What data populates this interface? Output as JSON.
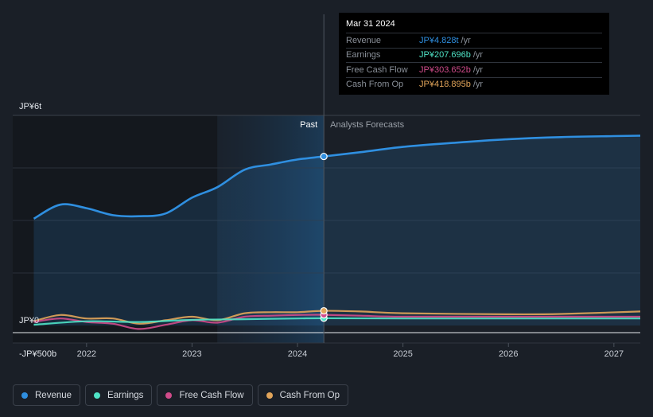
{
  "chart_data": {
    "type": "area",
    "y_axis": {
      "unit": "JP¥ trillions",
      "range": [
        -0.5,
        6.0
      ],
      "labels": [
        {
          "value": 6.0,
          "text": "JP¥6t"
        },
        {
          "value": 0.0,
          "text": "JP¥0"
        },
        {
          "value": -0.5,
          "text": "-JP¥500b"
        }
      ]
    },
    "x_axis": {
      "range": [
        2021.3,
        2027.25
      ],
      "ticks": [
        {
          "value": 2022.0,
          "text": "2022"
        },
        {
          "value": 2023.0,
          "text": "2023"
        },
        {
          "value": 2024.0,
          "text": "2024"
        },
        {
          "value": 2025.0,
          "text": "2025"
        },
        {
          "value": 2026.0,
          "text": "2026"
        },
        {
          "value": 2027.0,
          "text": "2027"
        }
      ]
    },
    "past_label": "Past",
    "forecast_label": "Analysts Forecasts",
    "past_start": 2023.24,
    "divider_x": 2024.25,
    "series": [
      {
        "name": "Revenue",
        "color": "#2f8fe0",
        "x": [
          2021.5,
          2021.75,
          2022.0,
          2022.25,
          2022.5,
          2022.75,
          2023.0,
          2023.24,
          2023.5,
          2023.75,
          2024.0,
          2024.25,
          2024.6,
          2025.0,
          2025.5,
          2026.0,
          2026.5,
          2027.0,
          2027.25
        ],
        "y": [
          3.05,
          3.45,
          3.35,
          3.15,
          3.12,
          3.2,
          3.65,
          3.95,
          4.45,
          4.6,
          4.74,
          4.828,
          4.95,
          5.1,
          5.22,
          5.32,
          5.38,
          5.41,
          5.42
        ]
      },
      {
        "name": "Earnings",
        "color": "#4fe3c6",
        "x": [
          2021.5,
          2022.0,
          2022.5,
          2023.0,
          2023.5,
          2024.0,
          2024.25,
          2025.0,
          2026.0,
          2027.25
        ],
        "y": [
          0.02,
          0.12,
          0.1,
          0.16,
          0.18,
          0.2,
          0.2077,
          0.2,
          0.2,
          0.2
        ]
      },
      {
        "name": "Free Cash Flow",
        "color": "#d04b8a",
        "x": [
          2021.5,
          2021.75,
          2022.0,
          2022.25,
          2022.5,
          2022.75,
          2023.0,
          2023.24,
          2023.5,
          2023.75,
          2024.0,
          2024.25,
          2024.6,
          2025.0,
          2026.0,
          2027.25
        ],
        "y": [
          0.1,
          0.2,
          0.1,
          0.05,
          -0.1,
          0.02,
          0.15,
          0.08,
          0.25,
          0.28,
          0.3,
          0.3037,
          0.28,
          0.25,
          0.25,
          0.25
        ]
      },
      {
        "name": "Cash From Op",
        "color": "#e2a55a",
        "x": [
          2021.5,
          2021.75,
          2022.0,
          2022.25,
          2022.5,
          2022.75,
          2023.0,
          2023.24,
          2023.5,
          2023.75,
          2024.0,
          2024.25,
          2024.6,
          2025.0,
          2026.0,
          2026.5,
          2027.25
        ],
        "y": [
          0.12,
          0.3,
          0.2,
          0.2,
          0.05,
          0.15,
          0.25,
          0.15,
          0.35,
          0.38,
          0.38,
          0.419,
          0.4,
          0.35,
          0.32,
          0.33,
          0.4
        ]
      }
    ],
    "highlight": {
      "x": 2024.25,
      "date": "Mar 31 2024",
      "rows": [
        {
          "label": "Revenue",
          "value": "JP¥4.828t",
          "unit": "/yr",
          "color": "#2f8fe0"
        },
        {
          "label": "Earnings",
          "value": "JP¥207.696b",
          "unit": "/yr",
          "color": "#4fe3c6"
        },
        {
          "label": "Free Cash Flow",
          "value": "JP¥303.652b",
          "unit": "/yr",
          "color": "#d04b8a"
        },
        {
          "label": "Cash From Op",
          "value": "JP¥418.895b",
          "unit": "/yr",
          "color": "#e2a55a"
        }
      ]
    },
    "highlight_values": [
      4.828,
      0.2077,
      0.3037,
      0.419
    ]
  },
  "legend": [
    {
      "label": "Revenue",
      "color": "#2f8fe0"
    },
    {
      "label": "Earnings",
      "color": "#4fe3c6"
    },
    {
      "label": "Free Cash Flow",
      "color": "#d04b8a"
    },
    {
      "label": "Cash From Op",
      "color": "#e2a55a"
    }
  ]
}
